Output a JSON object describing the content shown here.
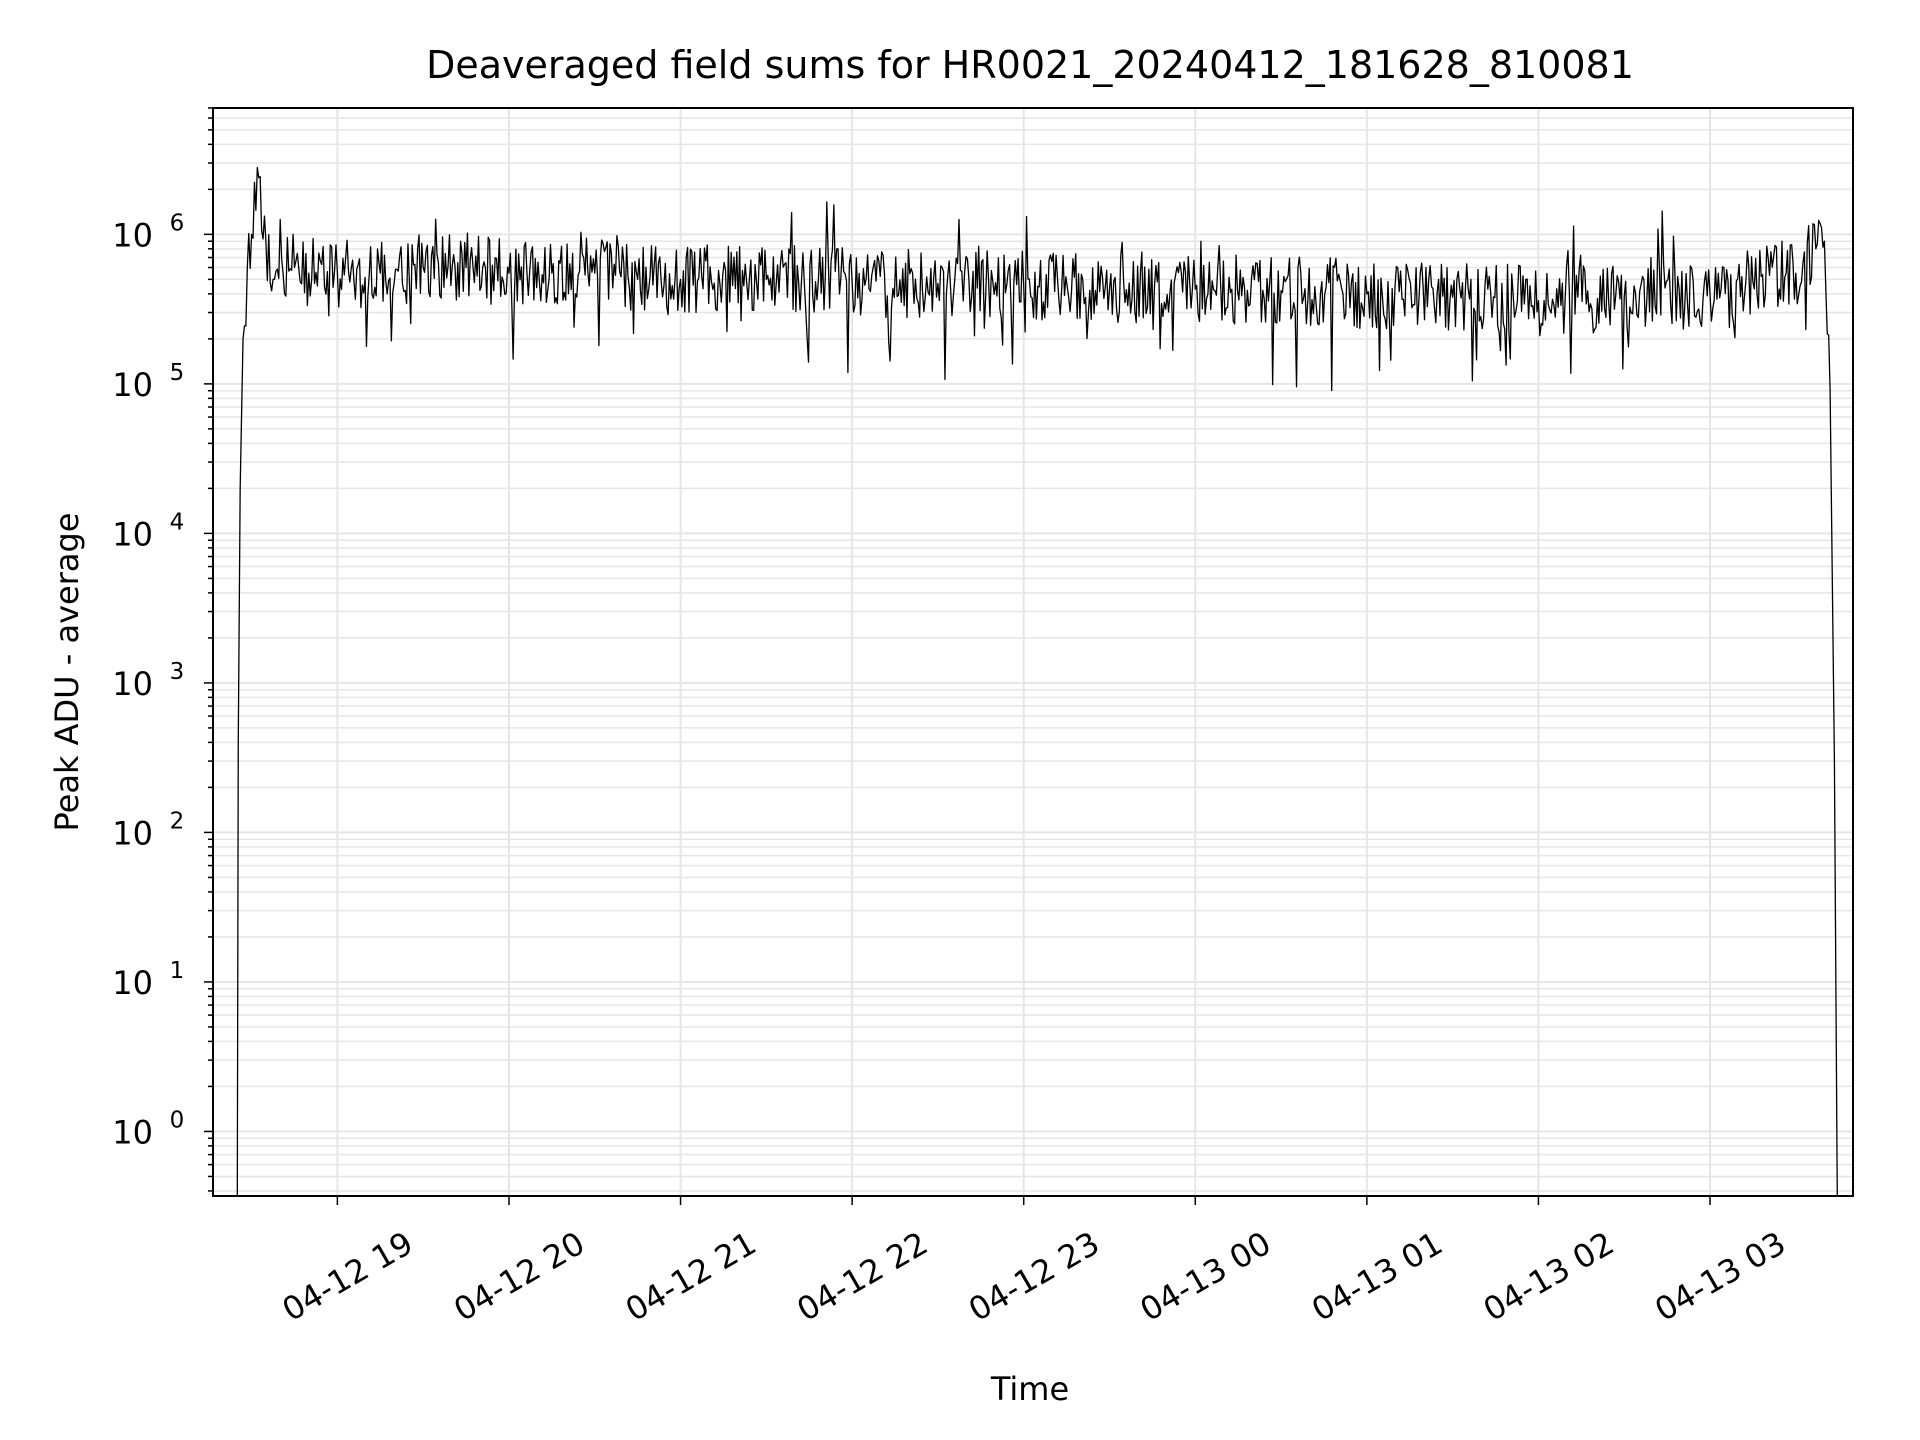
{
  "chart_data": {
    "type": "line",
    "title": "Deaveraged field sums for HR0021_20240412_181628_810081",
    "xlabel": "Time",
    "ylabel": "Peak ADU - average",
    "yscale": "log",
    "ylim": [
      0.37,
      7000000
    ],
    "xlim": [
      "2024-04-12T18:16:30",
      "2024-04-13T03:50:00"
    ],
    "grid": true,
    "line_color": "#000000",
    "grid_color": "#e6e6e6",
    "x_ticks": [
      {
        "label": "04-12 19",
        "t": "2024-04-12T19:00:00"
      },
      {
        "label": "04-12 20",
        "t": "2024-04-12T20:00:00"
      },
      {
        "label": "04-12 21",
        "t": "2024-04-12T21:00:00"
      },
      {
        "label": "04-12 22",
        "t": "2024-04-12T22:00:00"
      },
      {
        "label": "04-12 23",
        "t": "2024-04-12T23:00:00"
      },
      {
        "label": "04-13 00",
        "t": "2024-04-13T00:00:00"
      },
      {
        "label": "04-13 01",
        "t": "2024-04-13T01:00:00"
      },
      {
        "label": "04-13 02",
        "t": "2024-04-13T02:00:00"
      },
      {
        "label": "04-13 03",
        "t": "2024-04-13T03:00:00"
      }
    ],
    "y_ticks": [
      {
        "base": "10",
        "exp": "0",
        "value": 1
      },
      {
        "base": "10",
        "exp": "1",
        "value": 10
      },
      {
        "base": "10",
        "exp": "2",
        "value": 100
      },
      {
        "base": "10",
        "exp": "3",
        "value": 1000
      },
      {
        "base": "10",
        "exp": "4",
        "value": 10000
      },
      {
        "base": "10",
        "exp": "5",
        "value": 100000
      },
      {
        "base": "10",
        "exp": "6",
        "value": 1000000
      }
    ],
    "series": [
      {
        "x": [
          "2024-04-12T18:25:00",
          "2024-04-12T18:25:20",
          "2024-04-12T18:26:00",
          "2024-04-12T18:27:00",
          "2024-04-12T18:28:30",
          "2024-04-12T18:30:00",
          "2024-04-12T18:32:00",
          "2024-04-12T18:35:00",
          "2024-04-12T18:38:00",
          "2024-04-12T18:41:00",
          "2024-04-12T18:45:00",
          "2024-04-12T18:50:00",
          "2024-04-12T19:00:00",
          "2024-04-12T19:15:00",
          "2024-04-12T19:30:00",
          "2024-04-12T19:45:00",
          "2024-04-12T20:00:00",
          "2024-04-12T20:15:00",
          "2024-04-12T20:30:00",
          "2024-04-12T20:45:00",
          "2024-04-12T21:00:00",
          "2024-04-12T21:30:00",
          "2024-04-12T22:00:00",
          "2024-04-12T22:30:00",
          "2024-04-12T23:00:00",
          "2024-04-12T23:30:00",
          "2024-04-13T00:00:00",
          "2024-04-13T00:30:00",
          "2024-04-13T01:00:00",
          "2024-04-13T01:30:00",
          "2024-04-13T02:00:00",
          "2024-04-13T02:30:00",
          "2024-04-13T03:00:00",
          "2024-04-13T03:15:00",
          "2024-04-13T03:30:00",
          "2024-04-13T03:37:00",
          "2024-04-13T03:40:00",
          "2024-04-13T03:42:00",
          "2024-04-13T03:43:30",
          "2024-04-13T03:44:30"
        ],
        "y": [
          0.3,
          400,
          20000,
          200000,
          600000,
          1000000,
          2800000,
          900000,
          500000,
          550000,
          600000,
          550000,
          550000,
          550000,
          600000,
          600000,
          550000,
          550000,
          550000,
          500000,
          500000,
          500000,
          480000,
          470000,
          450000,
          430000,
          430000,
          420000,
          400000,
          380000,
          360000,
          380000,
          400000,
          480000,
          550000,
          800000,
          900000,
          90000,
          300,
          0.3
        ]
      }
    ]
  }
}
